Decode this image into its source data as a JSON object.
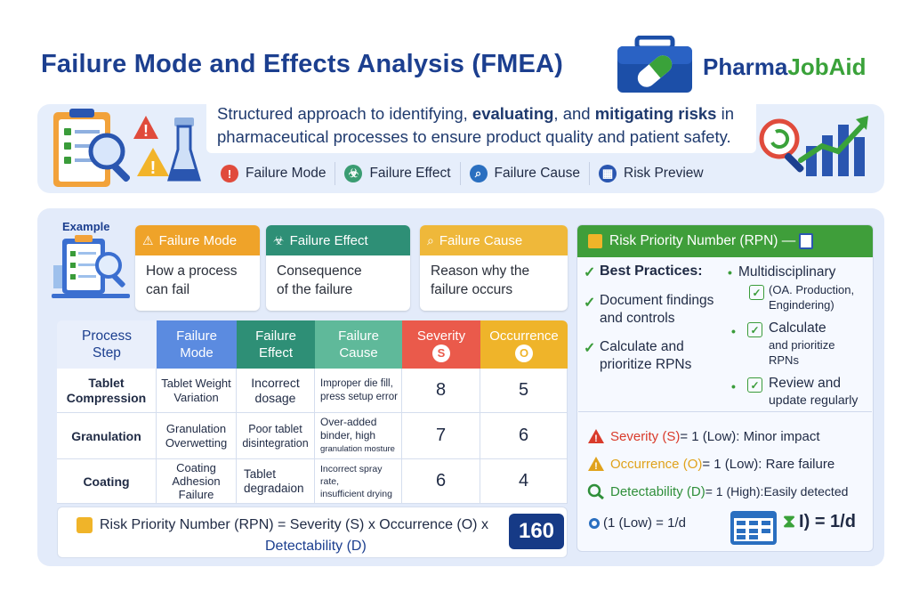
{
  "header": {
    "title": "Failure Mode and Effects Analysis (FMEA)",
    "brand_part1": "Pharma",
    "brand_part2": "JobAid"
  },
  "intro": {
    "text_part1": "Structured approach to identifying, ",
    "text_bold1": "evaluating",
    "text_part2": ", and ",
    "text_bold2": "mitigating risks",
    "text_part3": " in pharmaceutical processes to ensure product quality and patient safety."
  },
  "legend": [
    {
      "label": "Failure Mode",
      "icon": "alert-icon",
      "color": "#e04b3c"
    },
    {
      "label": "Failure Effect",
      "icon": "biohazard-icon",
      "color": "#3a9c72"
    },
    {
      "label": "Failure Cause",
      "icon": "search-icon",
      "color": "#2a6fc0"
    },
    {
      "label": "Risk Preview",
      "icon": "calculator-icon",
      "color": "#2a56b0"
    }
  ],
  "example_label": "Example",
  "cards": [
    {
      "title": "Failure Mode",
      "body": [
        "How a process",
        "can fail"
      ],
      "color": "#efa329",
      "icon": "warning-icon"
    },
    {
      "title": "Failure Effect",
      "body": [
        "Consequence",
        "of the failure"
      ],
      "color": "#2e8f76",
      "icon": "biohazard-icon"
    },
    {
      "title": "Failure Cause",
      "body": [
        "Reason why the",
        "failure occurs"
      ],
      "color": "#efb83a",
      "icon": "search-icon"
    }
  ],
  "rpn_panel": {
    "title": "Risk Priority Number (RPN) —",
    "best_practices_title": "Best Practices:",
    "left_items": [
      [
        "Document findings",
        "and controls"
      ],
      [
        "Calculate and",
        "prioritize RPNs"
      ]
    ],
    "right_items": [
      {
        "line1": "Multidisciplinary",
        "sub": [
          "(OA. Production,",
          "Engindering)"
        ]
      },
      {
        "line1": "Calculate",
        "sub": [
          "and prioritize",
          "RPNs"
        ]
      },
      {
        "line1": "Review and",
        "sub": [
          "update regularly"
        ]
      }
    ],
    "ratings": [
      {
        "label": "Severity (S)",
        "rest": " = 1 (Low): Minor impact",
        "color": "#d93b2b",
        "icon": "warning-icon"
      },
      {
        "label": "Occurrence (O)",
        "rest": " = 1 (Low): Rare failure",
        "color": "#e0a21b",
        "icon": "warning-icon"
      },
      {
        "label": "Detectability (D)",
        "rest": " = 1 (High):Easily detected",
        "color": "#2f8f3a",
        "icon": "search-icon"
      }
    ],
    "detect_formula_left": "(1 (Low) = 1/d",
    "detect_formula_right": "I) = 1/d"
  },
  "table": {
    "headers": [
      {
        "label": "Process\nStep",
        "color": "#e9effb",
        "text_color": "#1c3f8f"
      },
      {
        "label": "Failure\nMode",
        "color": "#5b8be0",
        "text_color": "#ffffff"
      },
      {
        "label": "Failure\nEffect",
        "color": "#2e8f76",
        "text_color": "#ffffff"
      },
      {
        "label": "Failure\nCause",
        "color": "#5fb99a",
        "text_color": "#ffffff"
      },
      {
        "label": "Severity",
        "badge": "S",
        "color": "#ea5a4b",
        "text_color": "#ffffff"
      },
      {
        "label": "Occurrence",
        "badge": "O",
        "color": "#efb42a",
        "text_color": "#ffffff"
      }
    ],
    "rows": [
      {
        "step": [
          "Tablet",
          "Compression"
        ],
        "mode": [
          "Tablet Weight",
          "Variation"
        ],
        "effect": [
          "Incorrect",
          "dosage"
        ],
        "cause": [
          "Improper die fill,",
          "press setup error"
        ],
        "severity": "8",
        "occurrence": "5"
      },
      {
        "step": [
          "Granulation"
        ],
        "mode": [
          "Granulation",
          "Overwetting"
        ],
        "effect": [
          "Poor tablet",
          "disintegration"
        ],
        "cause": [
          "Over-added",
          "binder, high",
          "granulation mosture"
        ],
        "severity": "7",
        "occurrence": "6"
      },
      {
        "step": [
          "Coating"
        ],
        "mode": [
          "Coating",
          "Adhesion",
          "Failure"
        ],
        "effect": [
          "Tablet",
          "degradaion"
        ],
        "cause": [
          "Incorrect spray rate,",
          "insufficient drying"
        ],
        "severity": "6",
        "occurrence": "4"
      }
    ]
  },
  "formula": {
    "line1": "Risk Priority Number (RPN) = Severity (S) x Occurrence (O) x",
    "line2": "Detectability (D)",
    "result": "160"
  }
}
